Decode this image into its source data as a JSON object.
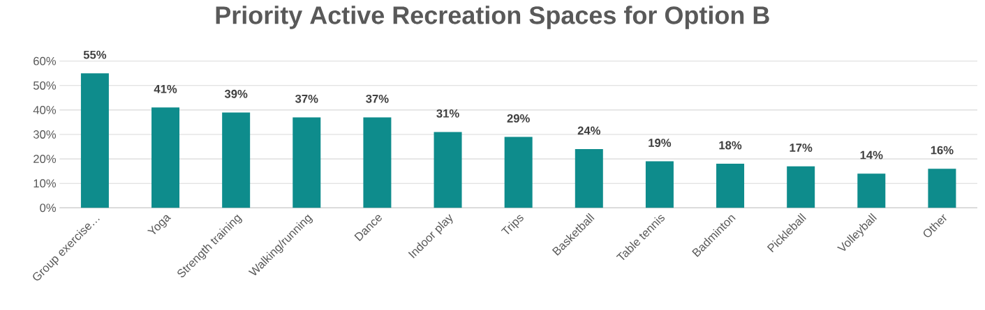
{
  "chart_data": {
    "type": "bar",
    "title": "Priority Active Recreation Spaces for Option B",
    "categories": [
      "Group exercise…",
      "Yoga",
      "Strength training",
      "Walking/running",
      "Dance",
      "Indoor play",
      "Trips",
      "Basketball",
      "Table tennis",
      "Badminton",
      "Pickleball",
      "Volleyball",
      "Other"
    ],
    "values": [
      55,
      41,
      39,
      37,
      37,
      31,
      29,
      24,
      19,
      18,
      17,
      14,
      16
    ],
    "value_labels": [
      "55%",
      "41%",
      "39%",
      "37%",
      "37%",
      "31%",
      "29%",
      "24%",
      "19%",
      "18%",
      "17%",
      "14%",
      "16%"
    ],
    "color": "#0e8c8c",
    "ylim": [
      0,
      60
    ],
    "yticks": [
      {
        "value": 0,
        "label": "0%"
      },
      {
        "value": 10,
        "label": "10%"
      },
      {
        "value": 20,
        "label": "20%"
      },
      {
        "value": 30,
        "label": "30%"
      },
      {
        "value": 40,
        "label": "40%"
      },
      {
        "value": 50,
        "label": "50%"
      },
      {
        "value": 60,
        "label": "60%"
      }
    ],
    "grid": "y"
  }
}
